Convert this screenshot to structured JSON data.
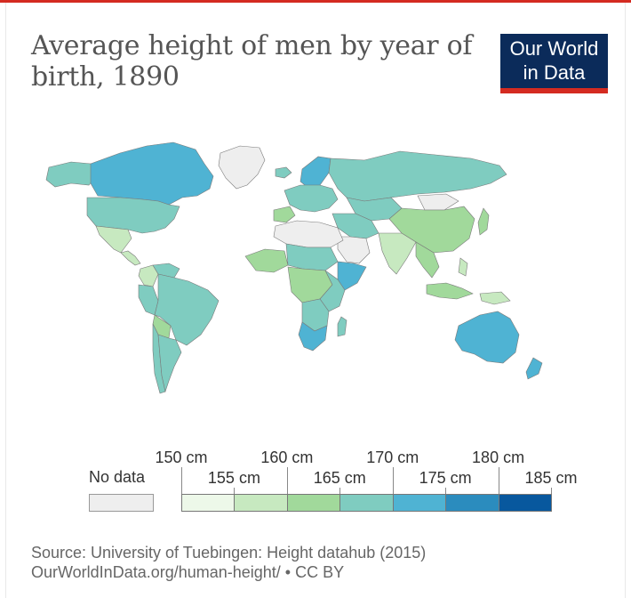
{
  "title": "Average height of men by year of birth, 1890",
  "logo": {
    "line1": "Our World",
    "line2": "in Data",
    "bg": "#0b2b5a",
    "bar": "#d42b21"
  },
  "top_rule_color": "#d42b21",
  "legend": {
    "no_data_label": "No data",
    "no_data_color": "#eeeeee",
    "bins": [
      {
        "from": 150,
        "to": 155,
        "color": "#edf8e9"
      },
      {
        "from": 155,
        "to": 160,
        "color": "#c7e9c0"
      },
      {
        "from": 160,
        "to": 165,
        "color": "#a1d99b"
      },
      {
        "from": 165,
        "to": 170,
        "color": "#7fccc0"
      },
      {
        "from": 170,
        "to": 175,
        "color": "#4fb3d3"
      },
      {
        "from": 175,
        "to": 180,
        "color": "#2b8cbe"
      },
      {
        "from": 180,
        "to": 185,
        "color": "#08589e"
      }
    ],
    "tick_labels": [
      "150 cm",
      "155 cm",
      "160 cm",
      "165 cm",
      "170 cm",
      "175 cm",
      "180 cm",
      "185 cm"
    ]
  },
  "source": {
    "line1": "Source: University of Tuebingen: Height datahub (2015)",
    "line2": "OurWorldInData.org/human-height/ • CC BY"
  },
  "map_regions": [
    {
      "name": "Canada",
      "bin": 4
    },
    {
      "name": "United States",
      "bin": 3
    },
    {
      "name": "Alaska",
      "bin": 3
    },
    {
      "name": "Greenland",
      "bin": -1
    },
    {
      "name": "Mexico",
      "bin": 1
    },
    {
      "name": "Central America",
      "bin": 1
    },
    {
      "name": "Colombia",
      "bin": 1
    },
    {
      "name": "Venezuela",
      "bin": 3
    },
    {
      "name": "Brazil",
      "bin": 3
    },
    {
      "name": "Peru",
      "bin": 3
    },
    {
      "name": "Bolivia",
      "bin": 2
    },
    {
      "name": "Argentina",
      "bin": 3
    },
    {
      "name": "Chile",
      "bin": 3
    },
    {
      "name": "Iceland",
      "bin": 3
    },
    {
      "name": "Scandinavia",
      "bin": 4
    },
    {
      "name": "Western Europe",
      "bin": 3
    },
    {
      "name": "Iberia",
      "bin": 2
    },
    {
      "name": "Russia",
      "bin": 3
    },
    {
      "name": "Central Asia",
      "bin": 3
    },
    {
      "name": "Middle East",
      "bin": 3
    },
    {
      "name": "Arabia",
      "bin": -1
    },
    {
      "name": "India",
      "bin": 1
    },
    {
      "name": "China",
      "bin": 2
    },
    {
      "name": "Mongolia",
      "bin": -1
    },
    {
      "name": "Japan",
      "bin": 2
    },
    {
      "name": "Southeast Asia",
      "bin": 2
    },
    {
      "name": "Indonesia",
      "bin": 2
    },
    {
      "name": "Philippines",
      "bin": 1
    },
    {
      "name": "New Guinea",
      "bin": 1
    },
    {
      "name": "Australia",
      "bin": 4
    },
    {
      "name": "New Zealand",
      "bin": 4
    },
    {
      "name": "North Africa",
      "bin": -1
    },
    {
      "name": "Sahel",
      "bin": 3
    },
    {
      "name": "West Africa",
      "bin": 2
    },
    {
      "name": "Horn of Africa",
      "bin": 4
    },
    {
      "name": "Central Africa",
      "bin": 2
    },
    {
      "name": "East Africa",
      "bin": 3
    },
    {
      "name": "Southern Africa",
      "bin": 3
    },
    {
      "name": "South Africa",
      "bin": 4
    },
    {
      "name": "Madagascar",
      "bin": 3
    }
  ]
}
